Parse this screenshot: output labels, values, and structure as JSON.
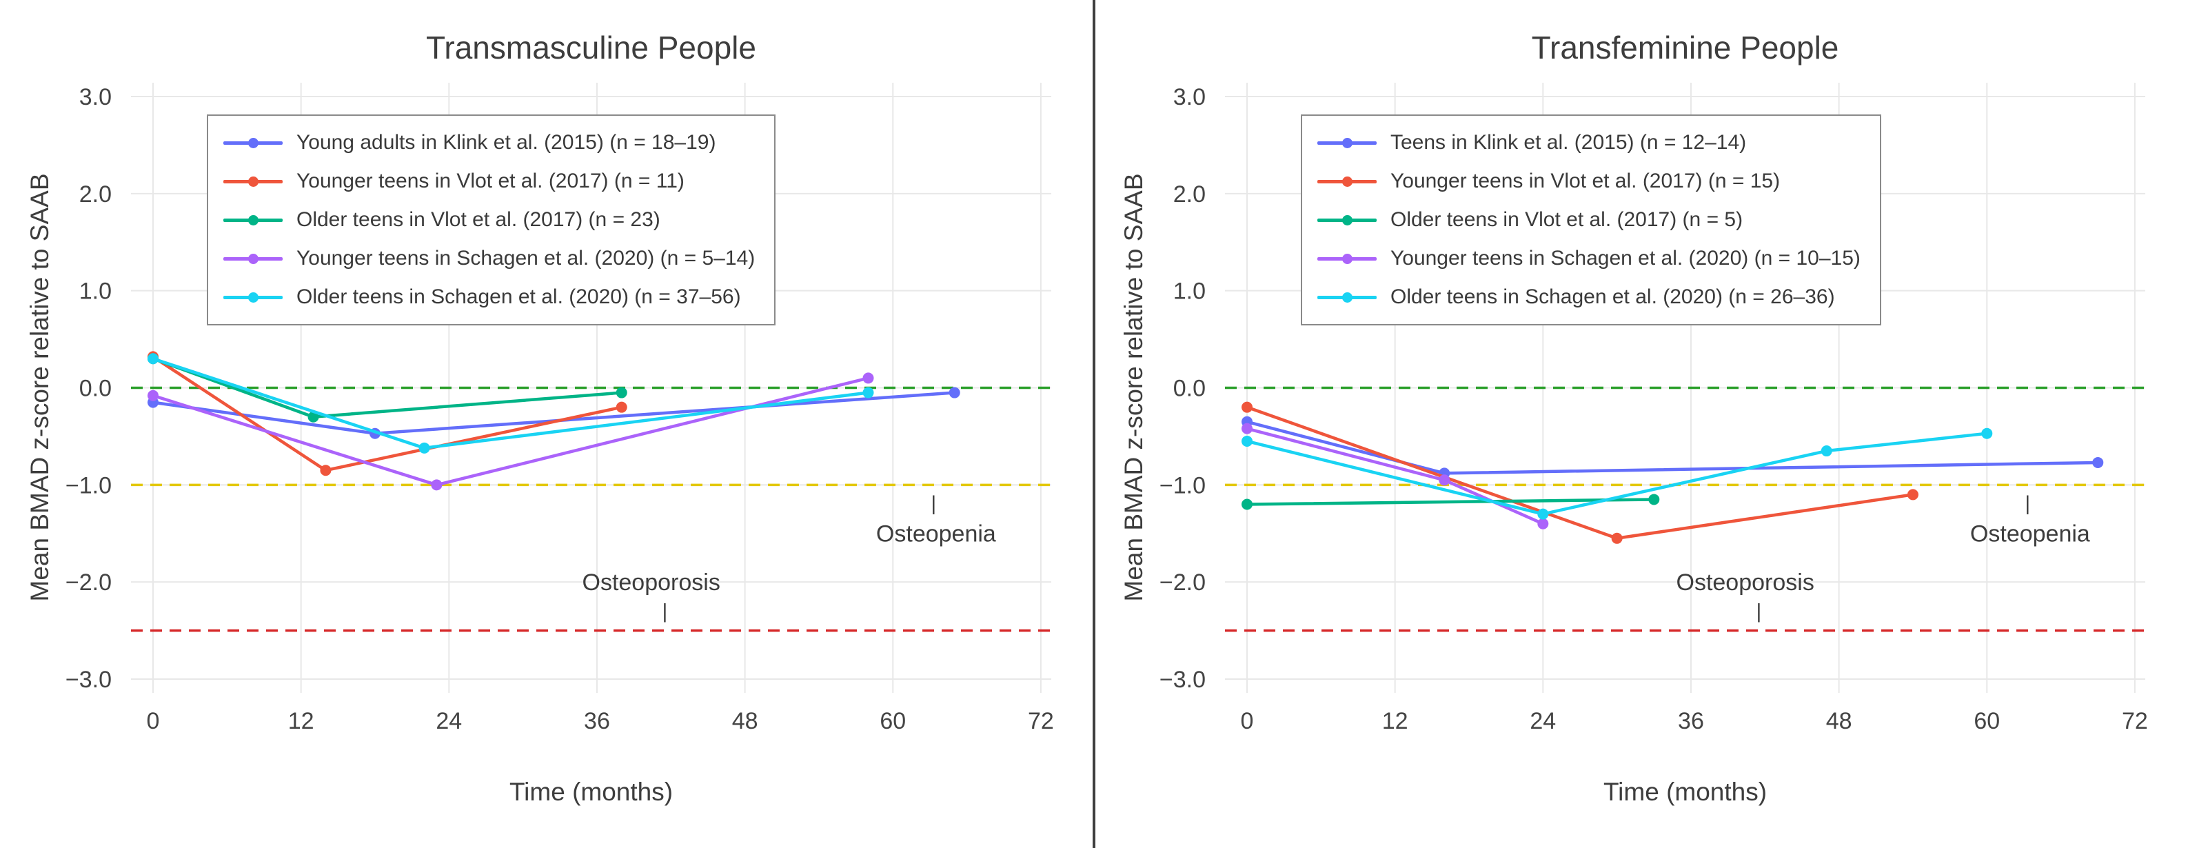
{
  "page": {
    "background": "#ffffff",
    "divider_color": "#3f3f3f",
    "grid_color": "#e8e8e8",
    "text_color": "#3d3d3d"
  },
  "chart_data": [
    {
      "type": "line",
      "title": "Transmasculine People",
      "xlabel": "Time (months)",
      "ylabel": "Mean BMAD z-score relative to SAAB",
      "xlim": [
        -2,
        74
      ],
      "ylim": [
        -3.15,
        3.15
      ],
      "xticks": [
        0,
        12,
        24,
        36,
        48,
        60,
        72
      ],
      "yticks": [
        3.0,
        2.0,
        1.0,
        0.0,
        -1.0,
        -2.0,
        -3.0
      ],
      "grid": true,
      "legend_position": "upper-left",
      "reference_lines": [
        {
          "name": "zero-line",
          "y": 0.0,
          "color": "#2ca02c",
          "style": "dashed"
        },
        {
          "name": "osteopenia-threshold-line",
          "y": -1.0,
          "color": "#e3c800",
          "style": "dashed"
        },
        {
          "name": "osteoporosis-threshold-line",
          "y": -2.5,
          "color": "#d62728",
          "style": "dashed"
        }
      ],
      "annotations": [
        {
          "text": "Osteoporosis",
          "x": 40.4,
          "y": -2.0,
          "tick_x": 41.5,
          "tick_y": -2.3
        },
        {
          "text": "Osteopenia",
          "x": 63.5,
          "y": -1.5,
          "tick_x": 63.3,
          "tick_y": -1.19
        }
      ],
      "series": [
        {
          "name": "Young adults in Klink et al. (2015) (n = 18–19)",
          "color": "#636efa",
          "x": [
            0,
            18,
            65
          ],
          "y": [
            -0.15,
            -0.47,
            -0.05
          ]
        },
        {
          "name": "Younger teens in Vlot et al. (2017) (n = 11)",
          "color": "#ef553b",
          "x": [
            0,
            14,
            38
          ],
          "y": [
            0.32,
            -0.85,
            -0.2
          ]
        },
        {
          "name": "Older teens in Vlot et al. (2017) (n = 23)",
          "color": "#00b487",
          "x": [
            0,
            13,
            38
          ],
          "y": [
            0.3,
            -0.3,
            -0.05
          ]
        },
        {
          "name": "Younger teens in Schagen et al. (2020) (n = 5–14)",
          "color": "#ab63fa",
          "x": [
            0,
            23,
            58
          ],
          "y": [
            -0.08,
            -1.0,
            0.1
          ]
        },
        {
          "name": "Older teens in Schagen et al. (2020) (n = 37–56)",
          "color": "#19d3f3",
          "x": [
            0,
            22,
            58
          ],
          "y": [
            0.3,
            -0.62,
            -0.05
          ]
        }
      ]
    },
    {
      "type": "line",
      "title": "Transfeminine People",
      "xlabel": "Time (months)",
      "ylabel": "Mean BMAD z-score relative to SAAB",
      "xlim": [
        -2,
        74
      ],
      "ylim": [
        -3.15,
        3.15
      ],
      "xticks": [
        0,
        12,
        24,
        36,
        48,
        60,
        72
      ],
      "yticks": [
        3.0,
        2.0,
        1.0,
        0.0,
        -1.0,
        -2.0,
        -3.0
      ],
      "grid": true,
      "legend_position": "upper-left",
      "reference_lines": [
        {
          "name": "zero-line",
          "y": 0.0,
          "color": "#2ca02c",
          "style": "dashed"
        },
        {
          "name": "osteopenia-threshold-line",
          "y": -1.0,
          "color": "#e3c800",
          "style": "dashed"
        },
        {
          "name": "osteoporosis-threshold-line",
          "y": -2.5,
          "color": "#d62728",
          "style": "dashed"
        }
      ],
      "annotations": [
        {
          "text": "Osteoporosis",
          "x": 40.4,
          "y": -2.0,
          "tick_x": 41.5,
          "tick_y": -2.3
        },
        {
          "text": "Osteopenia",
          "x": 63.5,
          "y": -1.5,
          "tick_x": 63.3,
          "tick_y": -1.19
        }
      ],
      "series": [
        {
          "name": "Teens in Klink et al. (2015) (n = 12–14)",
          "color": "#636efa",
          "x": [
            0,
            16,
            69
          ],
          "y": [
            -0.35,
            -0.88,
            -0.77
          ]
        },
        {
          "name": "Younger teens in Vlot et al. (2017) (n = 15)",
          "color": "#ef553b",
          "x": [
            0,
            30,
            54
          ],
          "y": [
            -0.2,
            -1.55,
            -1.1
          ]
        },
        {
          "name": "Older teens in Vlot et al. (2017) (n = 5)",
          "color": "#00b487",
          "x": [
            0,
            33
          ],
          "y": [
            -1.2,
            -1.15
          ]
        },
        {
          "name": "Younger teens in Schagen et al. (2020) (n = 10–15)",
          "color": "#ab63fa",
          "x": [
            0,
            16,
            24
          ],
          "y": [
            -0.42,
            -0.95,
            -1.4
          ]
        },
        {
          "name": "Older teens in Schagen et al. (2020) (n = 26–36)",
          "color": "#19d3f3",
          "x": [
            0,
            24,
            47,
            60
          ],
          "y": [
            -0.55,
            -1.3,
            -0.65,
            -0.47
          ]
        }
      ]
    }
  ]
}
